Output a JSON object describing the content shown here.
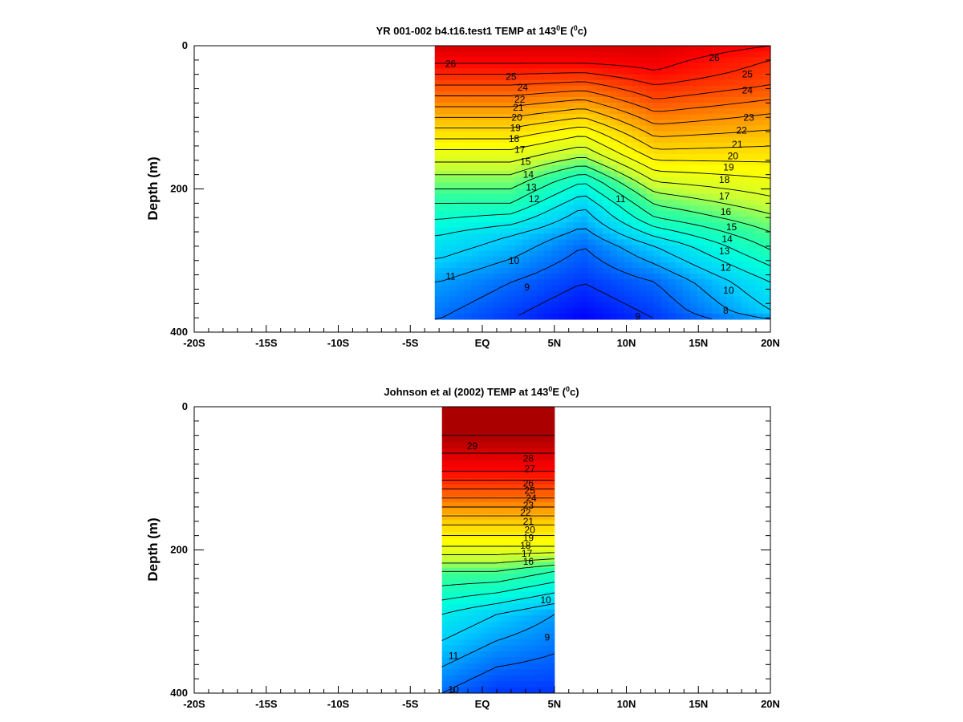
{
  "chart_data": [
    {
      "type": "heatmap",
      "title_main": "YR 001-002 b4.t16.test1 TEMP at 143",
      "title_sup": "0",
      "title_mid": "E (",
      "title_sup2": "0",
      "title_end": "c)",
      "xlabel": "",
      "ylabel": "Depth (m)",
      "xlim": [
        -20,
        20
      ],
      "ylim": [
        0,
        400
      ],
      "y_inverted": true,
      "x_ticks": [
        {
          "value": -20,
          "label": "-20S"
        },
        {
          "value": -15,
          "label": "-15S"
        },
        {
          "value": -10,
          "label": "-10S"
        },
        {
          "value": -5,
          "label": "-5S"
        },
        {
          "value": 0,
          "label": "EQ"
        },
        {
          "value": 5,
          "label": "5N"
        },
        {
          "value": 10,
          "label": "10N"
        },
        {
          "value": 15,
          "label": "15N"
        },
        {
          "value": 20,
          "label": "20N"
        }
      ],
      "y_ticks": [
        {
          "value": 0,
          "label": "0"
        },
        {
          "value": 200,
          "label": "200"
        },
        {
          "value": 400,
          "label": "400"
        }
      ],
      "data_extent": {
        "lat": [
          -3.3,
          20
        ],
        "depth": [
          0,
          382
        ]
      },
      "colormap": [
        "#0000ff",
        "#0066ff",
        "#00ccff",
        "#00ffdd",
        "#33ff99",
        "#ccff33",
        "#ffff00",
        "#ffcc00",
        "#ff8800",
        "#ff4400",
        "#ff0000",
        "#aa0000"
      ],
      "color_range": [
        8,
        29
      ],
      "temperature_profiles": [
        {
          "lat": -3,
          "depths": [
            0,
            25,
            55,
            85,
            115,
            145,
            180,
            220,
            265,
            330,
            382
          ],
          "temps": [
            28,
            27,
            25,
            23,
            21,
            19,
            17,
            15,
            13,
            11,
            10
          ]
        },
        {
          "lat": 2,
          "depths": [
            0,
            25,
            55,
            85,
            115,
            145,
            180,
            220,
            265,
            330,
            382
          ],
          "temps": [
            28,
            27,
            25,
            23,
            21,
            19,
            17,
            15,
            12,
            10,
            9
          ]
        },
        {
          "lat": 7,
          "depths": [
            0,
            25,
            50,
            75,
            100,
            125,
            155,
            190,
            225,
            280,
            382
          ],
          "temps": [
            28,
            27,
            25,
            23,
            21,
            19,
            17,
            14,
            12,
            10,
            8
          ]
        },
        {
          "lat": 12,
          "depths": [
            0,
            35,
            75,
            110,
            145,
            175,
            205,
            240,
            280,
            330,
            382
          ],
          "temps": [
            28,
            27,
            25,
            23,
            21,
            19,
            17,
            15,
            12,
            10,
            9
          ]
        },
        {
          "lat": 20,
          "depths": [
            0,
            20,
            55,
            95,
            140,
            185,
            235,
            285,
            330,
            370,
            382
          ],
          "temps": [
            27,
            26,
            25,
            23,
            21,
            19,
            17,
            15,
            13,
            12,
            11
          ]
        }
      ],
      "contour_labels": [
        {
          "lat": -2.2,
          "depth": 25,
          "text": "26"
        },
        {
          "lat": 2.0,
          "depth": 43,
          "text": "25"
        },
        {
          "lat": 2.8,
          "depth": 58,
          "text": "24"
        },
        {
          "lat": 2.6,
          "depth": 75,
          "text": "22"
        },
        {
          "lat": 2.5,
          "depth": 86,
          "text": "21"
        },
        {
          "lat": 2.4,
          "depth": 100,
          "text": "20"
        },
        {
          "lat": 2.3,
          "depth": 115,
          "text": "19"
        },
        {
          "lat": 2.2,
          "depth": 130,
          "text": "18"
        },
        {
          "lat": 2.6,
          "depth": 145,
          "text": "17"
        },
        {
          "lat": 3.0,
          "depth": 162,
          "text": "15"
        },
        {
          "lat": 3.2,
          "depth": 180,
          "text": "14"
        },
        {
          "lat": 3.4,
          "depth": 198,
          "text": "13"
        },
        {
          "lat": 3.6,
          "depth": 214,
          "text": "12"
        },
        {
          "lat": 9.6,
          "depth": 214,
          "text": "11"
        },
        {
          "lat": 2.2,
          "depth": 300,
          "text": "10"
        },
        {
          "lat": -2.2,
          "depth": 322,
          "text": "11"
        },
        {
          "lat": 3.1,
          "depth": 337,
          "text": "9"
        },
        {
          "lat": 10.8,
          "depth": 378,
          "text": "9"
        },
        {
          "lat": 16.9,
          "depth": 370,
          "text": "8"
        },
        {
          "lat": 16.1,
          "depth": 17,
          "text": "26"
        },
        {
          "lat": 18.4,
          "depth": 40,
          "text": "25"
        },
        {
          "lat": 18.4,
          "depth": 62,
          "text": "24"
        },
        {
          "lat": 18.5,
          "depth": 100,
          "text": "23"
        },
        {
          "lat": 18.0,
          "depth": 118,
          "text": "22"
        },
        {
          "lat": 17.7,
          "depth": 138,
          "text": "21"
        },
        {
          "lat": 17.4,
          "depth": 154,
          "text": "20"
        },
        {
          "lat": 17.1,
          "depth": 170,
          "text": "19"
        },
        {
          "lat": 16.8,
          "depth": 187,
          "text": "18"
        },
        {
          "lat": 16.8,
          "depth": 210,
          "text": "17"
        },
        {
          "lat": 16.9,
          "depth": 232,
          "text": "16"
        },
        {
          "lat": 17.3,
          "depth": 253,
          "text": "15"
        },
        {
          "lat": 17.0,
          "depth": 270,
          "text": "14"
        },
        {
          "lat": 16.8,
          "depth": 287,
          "text": "13"
        },
        {
          "lat": 16.9,
          "depth": 310,
          "text": "12"
        },
        {
          "lat": 17.1,
          "depth": 342,
          "text": "10"
        }
      ]
    },
    {
      "type": "heatmap",
      "title_main": "Johnson et al (2002) TEMP at 143",
      "title_sup": "0",
      "title_mid": "E (",
      "title_sup2": "0",
      "title_end": "c)",
      "xlabel": "",
      "ylabel": "Depth (m)",
      "xlim": [
        -20,
        20
      ],
      "ylim": [
        0,
        400
      ],
      "y_inverted": true,
      "x_ticks": [
        {
          "value": -20,
          "label": "-20S"
        },
        {
          "value": -15,
          "label": "-15S"
        },
        {
          "value": -10,
          "label": "-10S"
        },
        {
          "value": -5,
          "label": "-5S"
        },
        {
          "value": 0,
          "label": "EQ"
        },
        {
          "value": 5,
          "label": "5N"
        },
        {
          "value": 10,
          "label": "10N"
        },
        {
          "value": 15,
          "label": "15N"
        },
        {
          "value": 20,
          "label": "20N"
        }
      ],
      "y_ticks": [
        {
          "value": 0,
          "label": "0"
        },
        {
          "value": 200,
          "label": "200"
        },
        {
          "value": 400,
          "label": "400"
        }
      ],
      "data_extent": {
        "lat": [
          -2.8,
          5
        ],
        "depth": [
          0,
          400
        ]
      },
      "colormap": [
        "#0000ff",
        "#0066ff",
        "#00ccff",
        "#00ffdd",
        "#33ff99",
        "#ccff33",
        "#ffff00",
        "#ffcc00",
        "#ff8800",
        "#ff4400",
        "#ff0000",
        "#aa0000"
      ],
      "color_range": [
        8,
        29
      ],
      "temperature_profiles": [
        {
          "lat": -2.8,
          "depths": [
            0,
            40,
            65,
            90,
            115,
            140,
            165,
            195,
            230,
            290,
            400
          ],
          "temps": [
            30,
            29,
            28,
            27,
            25,
            23,
            21,
            19,
            16,
            13,
            10
          ]
        },
        {
          "lat": 1,
          "depths": [
            0,
            40,
            65,
            90,
            115,
            140,
            165,
            195,
            230,
            290,
            400
          ],
          "temps": [
            30,
            29,
            28,
            27,
            25,
            23,
            21,
            19,
            16,
            12,
            9
          ]
        },
        {
          "lat": 5,
          "depths": [
            0,
            40,
            65,
            90,
            115,
            140,
            165,
            195,
            230,
            290,
            400
          ],
          "temps": [
            30,
            29,
            28,
            27,
            25,
            23,
            21,
            19,
            15,
            11,
            9
          ]
        }
      ],
      "contour_labels": [
        {
          "lat": -0.7,
          "depth": 55,
          "text": "29"
        },
        {
          "lat": 3.2,
          "depth": 72,
          "text": "28"
        },
        {
          "lat": 3.3,
          "depth": 87,
          "text": "27"
        },
        {
          "lat": 3.2,
          "depth": 107,
          "text": "26"
        },
        {
          "lat": 3.3,
          "depth": 117,
          "text": "25"
        },
        {
          "lat": 3.4,
          "depth": 128,
          "text": "24"
        },
        {
          "lat": 3.2,
          "depth": 138,
          "text": "23"
        },
        {
          "lat": 3.0,
          "depth": 148,
          "text": "22"
        },
        {
          "lat": 3.2,
          "depth": 160,
          "text": "21"
        },
        {
          "lat": 3.3,
          "depth": 172,
          "text": "20"
        },
        {
          "lat": 3.2,
          "depth": 183,
          "text": "19"
        },
        {
          "lat": 3.0,
          "depth": 194,
          "text": "18"
        },
        {
          "lat": 3.1,
          "depth": 205,
          "text": "17"
        },
        {
          "lat": 3.2,
          "depth": 216,
          "text": "16"
        },
        {
          "lat": 4.4,
          "depth": 270,
          "text": "10"
        },
        {
          "lat": 4.5,
          "depth": 322,
          "text": "9"
        },
        {
          "lat": -2.0,
          "depth": 348,
          "text": "11"
        },
        {
          "lat": -2.0,
          "depth": 395,
          "text": "10"
        }
      ]
    }
  ]
}
